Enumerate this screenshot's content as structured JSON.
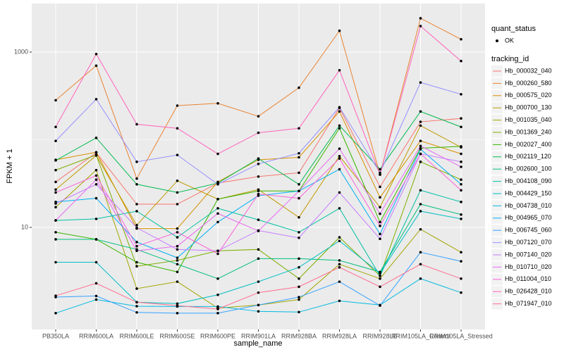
{
  "chart_data": {
    "type": "line",
    "x_label": "sample_name",
    "y_label": "FPKM + 1",
    "log_scale": true,
    "grid": true,
    "categories": [
      "PB350LA",
      "RRIM600LA",
      "RRIM600LE",
      "RRIM600SE",
      "RRIM600PE",
      "RRIM901LA",
      "RRIM928BA",
      "RRIM928LA",
      "RRIM928LE",
      "RRIM105LA_Control",
      "RRIM105LA_Stressed"
    ],
    "ylim": [
      0.684,
      3581
    ],
    "yticks": [
      10,
      1000
    ],
    "point_legend_title": "quant_status",
    "point_legend_entry": "OK",
    "point_color": "#000000",
    "legend_title": "tracking_id",
    "series": [
      {
        "name": "Hb_000032_040",
        "color": "#F8766D",
        "values": [
          33,
          71,
          18.4,
          18.4,
          32,
          38,
          42,
          230,
          29,
          160,
          175
        ]
      },
      {
        "name": "Hb_000260_580",
        "color": "#EA8331",
        "values": [
          282,
          700,
          36,
          245,
          260,
          185,
          392,
          1750,
          40,
          2430,
          1400
        ]
      },
      {
        "name": "Hb_000575_020",
        "color": "#D89000",
        "values": [
          59,
          72,
          9.7,
          9.7,
          33,
          59,
          63,
          210,
          22,
          97,
          69
        ]
      },
      {
        "name": "Hb_000700_130",
        "color": "#C09B00",
        "values": [
          27,
          66,
          10.6,
          34,
          21,
          27,
          13,
          65,
          17,
          145,
          82
        ]
      },
      {
        "name": "Hb_001035_040",
        "color": "#A3A500",
        "values": [
          17,
          45,
          2,
          2.4,
          1.2,
          1.3,
          1.5,
          3.8,
          2.6,
          9.5,
          5.2
        ]
      },
      {
        "name": "Hb_001369_240",
        "color": "#7CAE00",
        "values": [
          45,
          67,
          3.6,
          4.2,
          5.4,
          5.6,
          2.6,
          7.7,
          2.8,
          56,
          35
        ]
      },
      {
        "name": "Hb_002027_400",
        "color": "#39B600",
        "values": [
          8.8,
          7.3,
          4,
          3.1,
          21,
          26,
          26,
          135,
          11.5,
          80,
          84
        ]
      },
      {
        "name": "Hb_002119_120",
        "color": "#00BB4E",
        "values": [
          58,
          105,
          31,
          25,
          32,
          61,
          31,
          145,
          46,
          210,
          140
        ]
      },
      {
        "name": "Hb_002600_100",
        "color": "#00BF7D",
        "values": [
          7.3,
          7.3,
          5.6,
          3.8,
          2.6,
          4.4,
          4.4,
          4.2,
          3.1,
          18.4,
          14
        ]
      },
      {
        "name": "Hb_004108_090",
        "color": "#00C1A3",
        "values": [
          12,
          12.5,
          15.3,
          7.7,
          16.5,
          12.2,
          8.8,
          16.5,
          2.8,
          26.5,
          19.5
        ]
      },
      {
        "name": "Hb_004429_150",
        "color": "#00BFC4",
        "values": [
          4,
          4,
          1.4,
          1.35,
          1.7,
          2.4,
          3.5,
          7,
          3,
          15.3,
          12.5
        ]
      },
      {
        "name": "Hb_004738_010",
        "color": "#00BAE0",
        "values": [
          1.05,
          1.5,
          1.26,
          1.25,
          1.25,
          1.1,
          1.08,
          1.45,
          1.3,
          2.6,
          1.8
        ]
      },
      {
        "name": "Hb_004965_070",
        "color": "#00B0F6",
        "values": [
          19.5,
          21.5,
          6.8,
          4.5,
          11.5,
          23,
          26,
          46,
          8.4,
          78,
          31
        ]
      },
      {
        "name": "Hb_006745_060",
        "color": "#35A2FF",
        "values": [
          1.6,
          1.65,
          1.07,
          1.05,
          1.05,
          1.3,
          1.6,
          2.4,
          1.28,
          5.2,
          4.1
        ]
      },
      {
        "name": "Hb_007120_070",
        "color": "#9590FF",
        "values": [
          97,
          290,
          56,
          67,
          31,
          53,
          70,
          235,
          42,
          450,
          330
        ]
      },
      {
        "name": "Hb_007140_020",
        "color": "#C77CFF",
        "values": [
          18.7,
          31,
          9.9,
          5.6,
          5.4,
          9.2,
          7.6,
          25,
          7.4,
          69,
          56
        ]
      },
      {
        "name": "Hb_010710_020",
        "color": "#E76BF3",
        "values": [
          12,
          35,
          5.4,
          6.1,
          14.4,
          9.1,
          26,
          79,
          14.3,
          85,
          49
        ]
      },
      {
        "name": "Hb_011004_010",
        "color": "#FA62DB",
        "values": [
          25,
          39,
          6.1,
          8.8,
          5,
          24,
          21.5,
          61,
          10.4,
          69,
          26.5
        ]
      },
      {
        "name": "Hb_026428_010",
        "color": "#FF62BC",
        "values": [
          140,
          950,
          150,
          135,
          69,
          120,
          135,
          620,
          40,
          1980,
          790
        ]
      },
      {
        "name": "Hb_071947_010",
        "color": "#FF6C91",
        "values": [
          1.66,
          2.3,
          1.4,
          1.28,
          1.17,
          1.8,
          2.1,
          3.5,
          2.1,
          3.8,
          2.6
        ]
      }
    ]
  }
}
